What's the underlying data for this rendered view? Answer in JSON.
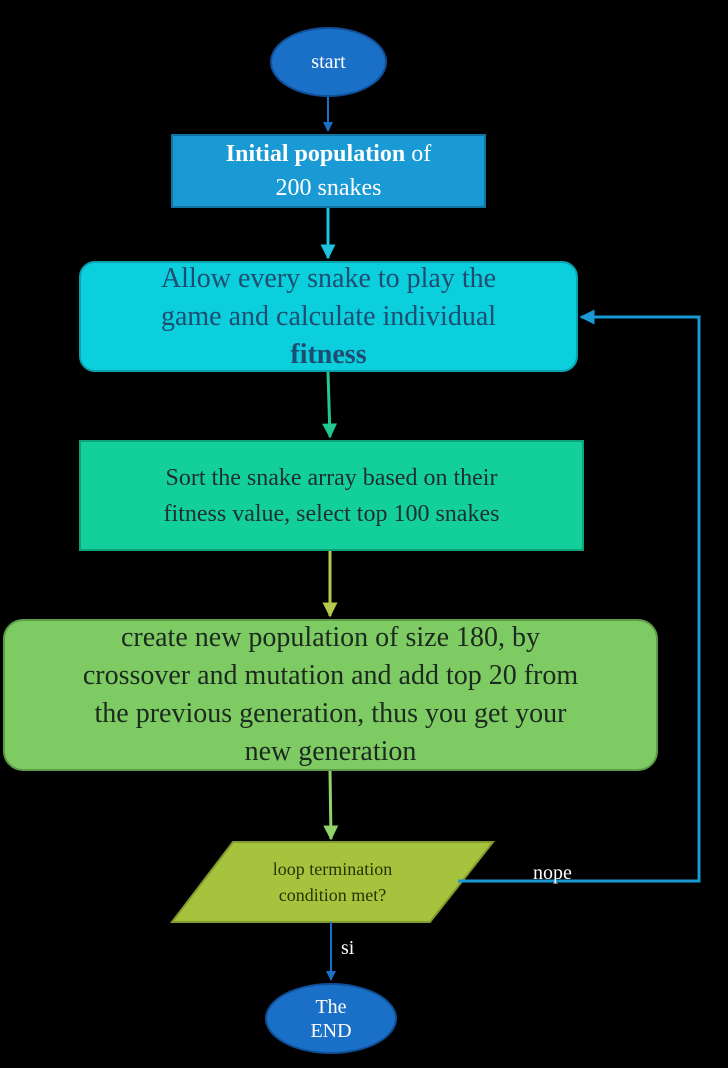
{
  "nodes": {
    "start": {
      "text": "start"
    },
    "initial": {
      "bold": "Initial population",
      "rest": " of",
      "line2": "200 snakes"
    },
    "play": {
      "line1": "Allow every snake to play the",
      "line2": "game and calculate individual",
      "bold": "fitness"
    },
    "sort": {
      "line1": "Sort the snake array based on their",
      "line2": "fitness value, select top 100 snakes"
    },
    "create": {
      "line1": "create new population of size 180, by",
      "line2": "crossover and mutation and add top 20 from",
      "line3": "the previous generation, thus you get your",
      "line4": "new generation"
    },
    "loop": {
      "line1": "loop termination",
      "line2": "condition met?"
    },
    "end": {
      "line1": "The",
      "line2": "END"
    }
  },
  "edges": {
    "nope_label": "nope",
    "si_label": "si"
  },
  "colors": {
    "background": "#000000",
    "terminal": "#1a6fc7",
    "process_blue": "#1a9ad4",
    "process_cyan": "#0bcfdc",
    "process_teal": "#12cf9b",
    "process_green": "#7ecb63",
    "decision": "#a6c33e",
    "loop_line": "#1a9ad4"
  }
}
